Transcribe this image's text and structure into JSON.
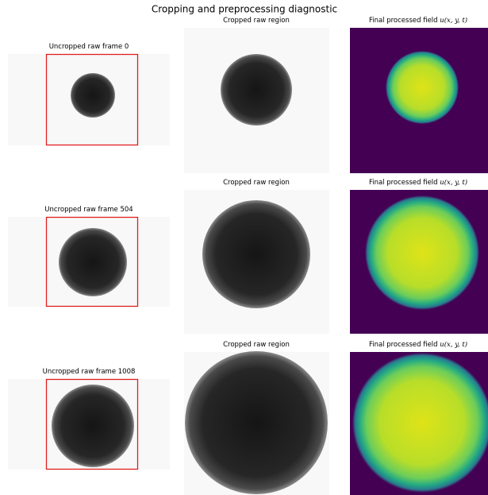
{
  "header": {
    "title": "Cropping and preprocessing diagnostic"
  },
  "rows": [
    {
      "raw_title": "Uncropped raw frame 0",
      "crop_title": "Cropped raw region",
      "field_title": {
        "text": "Final processed field",
        "math": "u(x, y, t)"
      }
    },
    {
      "raw_title": "Uncropped raw frame 504",
      "crop_title": "Cropped raw region",
      "field_title": {
        "text": "Final processed field",
        "math": "u(x, y, t)"
      }
    },
    {
      "raw_title": "Uncropped raw frame 1008",
      "crop_title": "Cropped raw region",
      "field_title": {
        "text": "Final processed field",
        "math": "u(x, y, t)"
      }
    }
  ]
}
